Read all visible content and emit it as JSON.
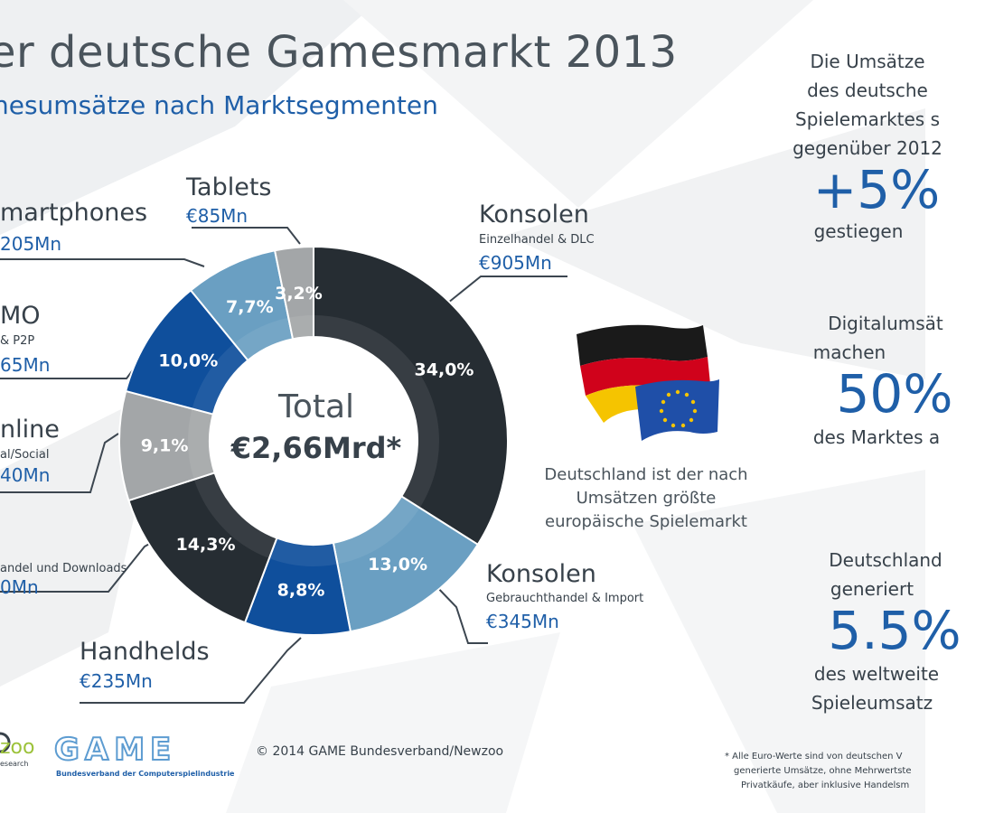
{
  "header": {
    "title": "er deutsche Gamesmarkt 2013",
    "subtitle": "nesumsätze nach Marktsegmenten"
  },
  "chart_data": {
    "type": "pie",
    "center_label": "Total",
    "center_value": "€2,66Mrd*",
    "slices": [
      {
        "label": "Konsolen",
        "pct": 34.0,
        "pct_label": "34,0%",
        "color": "#262d33"
      },
      {
        "label": "Konsolen",
        "pct": 13.0,
        "pct_label": "13,0%",
        "color": "#6a9fc2"
      },
      {
        "label": "Handhelds",
        "pct": 8.8,
        "pct_label": "8,8%",
        "color": "#0f4f9c"
      },
      {
        "label": "",
        "pct": 14.3,
        "pct_label": "14,3%",
        "color": "#262d33"
      },
      {
        "label": "nline",
        "pct": 9.1,
        "pct_label": "9,1%",
        "color": "#a3a6a8"
      },
      {
        "label": "MO",
        "pct": 10.0,
        "pct_label": "10,0%",
        "color": "#0f4f9c"
      },
      {
        "label": "martphones",
        "pct": 7.7,
        "pct_label": "7,7%",
        "color": "#6a9fc2"
      },
      {
        "label": "Tablets",
        "pct": 3.2,
        "pct_label": "3,2%",
        "color": "#a3a6a8"
      }
    ]
  },
  "segments": {
    "konsolen": {
      "name": "Konsolen",
      "sub": "Einzelhandel & DLC",
      "value": "€905Mn"
    },
    "konsolen_gebraucht": {
      "name": "Konsolen",
      "sub": "Gebrauchthandel & Import",
      "value": "€345Mn"
    },
    "handhelds": {
      "name": "Handhelds",
      "value": "€235Mn"
    },
    "pc": {
      "sub": "andel und Downloads",
      "value": "0Mn"
    },
    "online": {
      "name": "nline",
      "sub": "al/Social",
      "value": "40Mn"
    },
    "mmo": {
      "name": "MO",
      "sub": "& P2P",
      "value": "65Mn"
    },
    "smartphones": {
      "name": "martphones",
      "value": "205Mn"
    },
    "tablets": {
      "name": "Tablets",
      "value": "€85Mn"
    }
  },
  "stats": {
    "s1_line1": "Die Umsätze",
    "s1_line2": "des deutsche",
    "s1_line3": "Spielemarktes s",
    "s1_line4": "gegenüber 2012",
    "s1_big": "+5%",
    "s1_after": "gestiegen",
    "s2_line1": "Digitalumsät",
    "s2_line2": "machen",
    "s2_big": "50%",
    "s2_after": "des Marktes a",
    "s3_line1": "Deutschland",
    "s3_line2": "generiert",
    "s3_big": "5.5%",
    "s3_after1": "des weltweite",
    "s3_after2": "Spieleumsatz"
  },
  "germany": {
    "line1": "Deutschland ist der nach",
    "line2": "Umsätzen größte",
    "line3": "europäische Spielemarkt"
  },
  "footer": {
    "newzoo_logo": "zoo",
    "newzoo_sub": "esearch",
    "game_logo": "GAME",
    "game_sub": "Bundesverband der Computerspielindustrie",
    "copyright": "© 2014 GAME Bundesverband/Newzoo",
    "note1": "* Alle Euro-Werte sind von deutschen V",
    "note2": "generierte Umsätze, ohne Mehrwertste",
    "note3": "Privatkäufe, aber inklusive Handelsm"
  }
}
